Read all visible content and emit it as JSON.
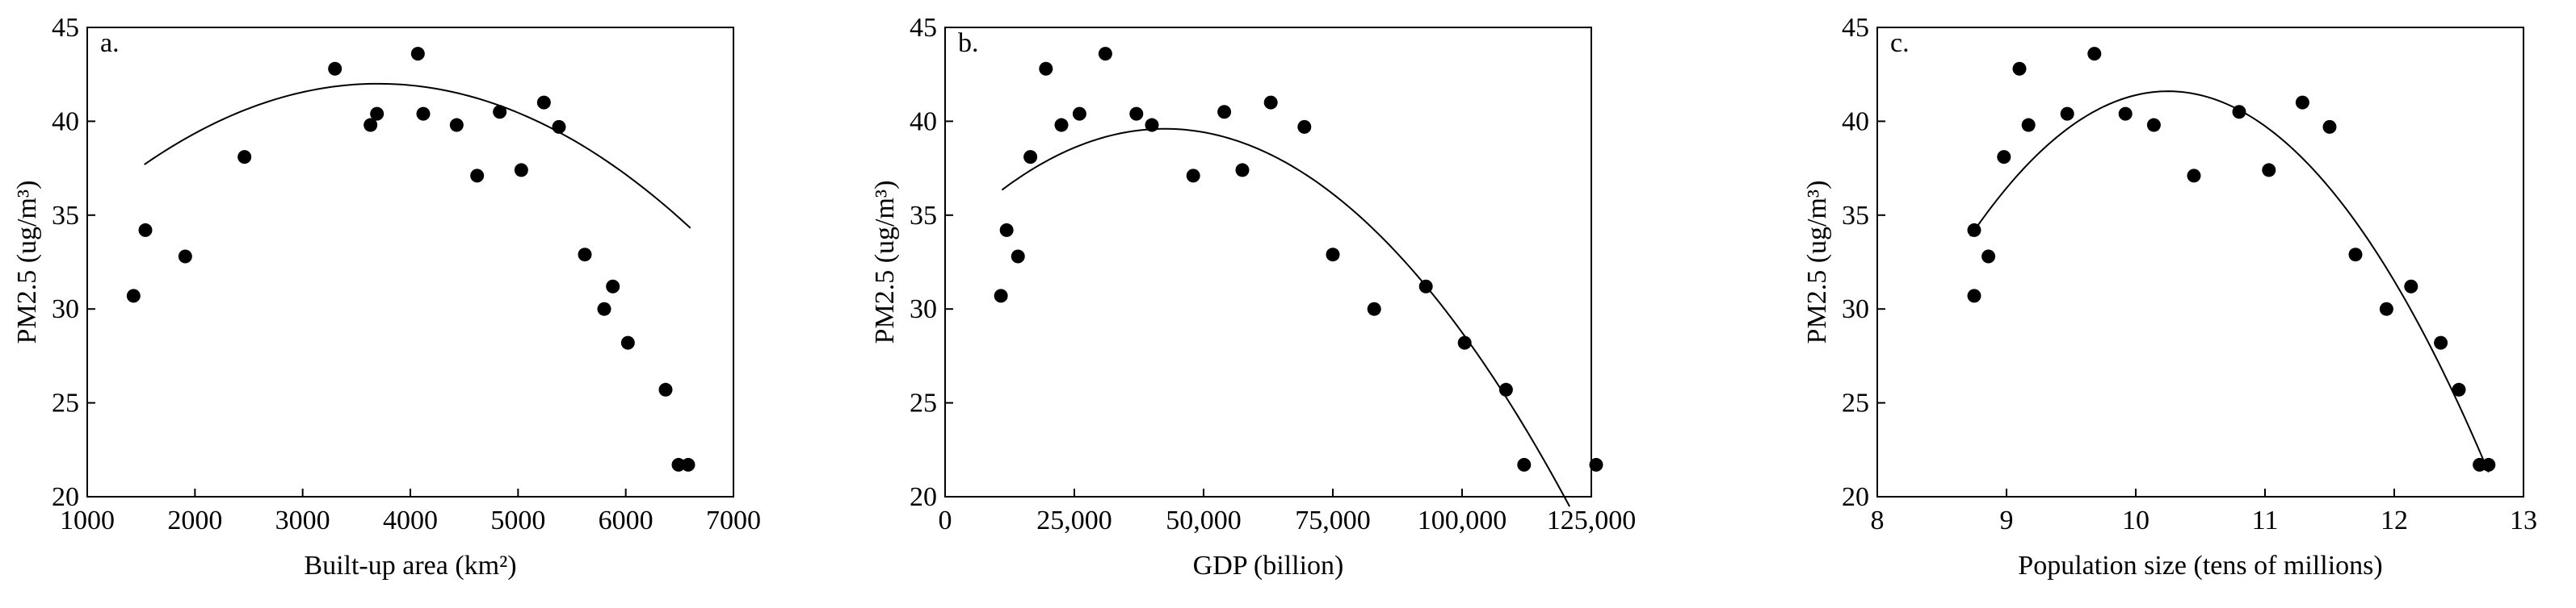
{
  "chart_data": [
    {
      "type": "scatter",
      "panel_label": "a.",
      "xlabel": "Built-up area (km²)",
      "ylabel": "PM2.5 (ug/m³)",
      "xlim": [
        1000,
        7000
      ],
      "ylim": [
        20,
        45
      ],
      "x_ticks": [
        1000,
        2000,
        3000,
        4000,
        5000,
        6000,
        7000
      ],
      "x_tick_labels": [
        "1000",
        "2000",
        "3000",
        "4000",
        "5000",
        "6000",
        "7000"
      ],
      "y_ticks": [
        20,
        25,
        30,
        35,
        40,
        45
      ],
      "y_tick_labels": [
        "20",
        "25",
        "30",
        "35",
        "40",
        "45"
      ],
      "grid": false,
      "points": [
        {
          "x": 1430,
          "y": 30.7
        },
        {
          "x": 1540,
          "y": 34.2
        },
        {
          "x": 1910,
          "y": 32.8
        },
        {
          "x": 2460,
          "y": 38.1
        },
        {
          "x": 3300,
          "y": 42.8
        },
        {
          "x": 3630,
          "y": 39.8
        },
        {
          "x": 3690,
          "y": 40.4
        },
        {
          "x": 4070,
          "y": 43.6
        },
        {
          "x": 4120,
          "y": 40.4
        },
        {
          "x": 4430,
          "y": 39.8
        },
        {
          "x": 4620,
          "y": 37.1
        },
        {
          "x": 4830,
          "y": 40.5
        },
        {
          "x": 5030,
          "y": 37.4
        },
        {
          "x": 5240,
          "y": 41.0
        },
        {
          "x": 5380,
          "y": 39.7
        },
        {
          "x": 5620,
          "y": 32.9
        },
        {
          "x": 5800,
          "y": 30.0
        },
        {
          "x": 5880,
          "y": 31.2
        },
        {
          "x": 6020,
          "y": 28.2
        },
        {
          "x": 6370,
          "y": 25.7
        },
        {
          "x": 6490,
          "y": 21.7
        },
        {
          "x": 6580,
          "y": 21.7
        }
      ],
      "fit_curve": {
        "type": "quadratic",
        "vertex_x": 3700,
        "vertex_y": 42.0,
        "a": -9.14e-07,
        "x_range": [
          1530,
          6600
        ]
      }
    },
    {
      "type": "scatter",
      "panel_label": "b.",
      "xlabel": "GDP (billion)",
      "ylabel": "PM2.5 (ug/m³)",
      "xlim": [
        0,
        125000
      ],
      "ylim": [
        20,
        45
      ],
      "x_ticks": [
        0,
        25000,
        50000,
        75000,
        100000,
        125000
      ],
      "x_tick_labels": [
        "0",
        "25,000",
        "50,000",
        "75,000",
        "100,000",
        "125,000"
      ],
      "y_ticks": [
        20,
        25,
        30,
        35,
        40,
        45
      ],
      "y_tick_labels": [
        "20",
        "25",
        "30",
        "35",
        "40",
        "45"
      ],
      "grid": false,
      "points": [
        {
          "x": 10800,
          "y": 30.7
        },
        {
          "x": 11900,
          "y": 34.2
        },
        {
          "x": 14100,
          "y": 32.8
        },
        {
          "x": 16500,
          "y": 38.1
        },
        {
          "x": 19500,
          "y": 42.8
        },
        {
          "x": 22500,
          "y": 39.8
        },
        {
          "x": 26000,
          "y": 40.4
        },
        {
          "x": 31000,
          "y": 43.6
        },
        {
          "x": 37000,
          "y": 40.4
        },
        {
          "x": 40000,
          "y": 39.8
        },
        {
          "x": 48000,
          "y": 37.1
        },
        {
          "x": 54000,
          "y": 40.5
        },
        {
          "x": 57500,
          "y": 37.4
        },
        {
          "x": 63000,
          "y": 41.0
        },
        {
          "x": 69500,
          "y": 39.7
        },
        {
          "x": 75000,
          "y": 32.9
        },
        {
          "x": 83000,
          "y": 30.0
        },
        {
          "x": 93000,
          "y": 31.2
        },
        {
          "x": 100500,
          "y": 28.2
        },
        {
          "x": 108500,
          "y": 25.7
        },
        {
          "x": 112000,
          "y": 21.7
        },
        {
          "x": 126000,
          "y": 21.7
        }
      ],
      "fit_curve": {
        "type": "quadratic",
        "vertex_x": 42500,
        "vertex_y": 39.6,
        "a": -3.282e-09,
        "x_range": [
          11000,
          120800
        ]
      }
    },
    {
      "type": "scatter",
      "panel_label": "c.",
      "xlabel": "Population size (tens of millions)",
      "ylabel": "PM2.5 (ug/m³)",
      "xlim": [
        8,
        13
      ],
      "ylim": [
        20,
        45
      ],
      "x_ticks": [
        8,
        9,
        10,
        11,
        12,
        13
      ],
      "x_tick_labels": [
        "8",
        "9",
        "10",
        "11",
        "12",
        "13"
      ],
      "y_ticks": [
        20,
        25,
        30,
        35,
        40,
        45
      ],
      "y_tick_labels": [
        "20",
        "25",
        "30",
        "35",
        "40",
        "45"
      ],
      "grid": false,
      "points": [
        {
          "x": 8.75,
          "y": 34.2
        },
        {
          "x": 8.75,
          "y": 30.7
        },
        {
          "x": 8.86,
          "y": 32.8
        },
        {
          "x": 8.98,
          "y": 38.1
        },
        {
          "x": 9.1,
          "y": 42.8
        },
        {
          "x": 9.17,
          "y": 39.8
        },
        {
          "x": 9.47,
          "y": 40.4
        },
        {
          "x": 9.68,
          "y": 43.6
        },
        {
          "x": 9.92,
          "y": 40.4
        },
        {
          "x": 10.14,
          "y": 39.8
        },
        {
          "x": 10.45,
          "y": 37.1
        },
        {
          "x": 10.8,
          "y": 40.5
        },
        {
          "x": 11.03,
          "y": 37.4
        },
        {
          "x": 11.29,
          "y": 41.0
        },
        {
          "x": 11.5,
          "y": 39.7
        },
        {
          "x": 11.7,
          "y": 32.9
        },
        {
          "x": 11.94,
          "y": 30.0
        },
        {
          "x": 12.13,
          "y": 31.2
        },
        {
          "x": 12.36,
          "y": 28.2
        },
        {
          "x": 12.5,
          "y": 25.7
        },
        {
          "x": 12.66,
          "y": 21.7
        },
        {
          "x": 12.73,
          "y": 21.7
        }
      ],
      "fit_curve": {
        "type": "quadratic",
        "vertex_x": 10.25,
        "vertex_y": 41.6,
        "a": -3.3,
        "x_range": [
          8.72,
          12.73
        ]
      }
    }
  ]
}
